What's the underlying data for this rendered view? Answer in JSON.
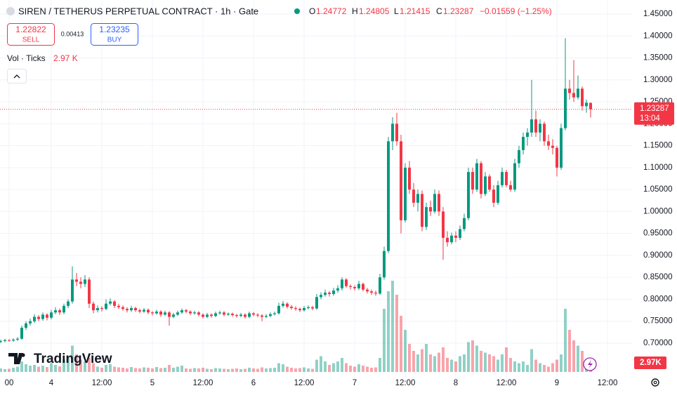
{
  "chart_data": {
    "type": "candlestick",
    "header": {
      "symbol": "SIREN / TETHERUS PERPETUAL CONTRACT · 1h · Gate",
      "o": "O",
      "h": "H",
      "l": "L",
      "c": "C",
      "change": "−0.01559 (−1.25%)"
    },
    "trade": {
      "sell_price": 1.22822,
      "sell": "SELL",
      "spread": 0.00413,
      "buy_price": 1.23235,
      "buy": "BUY"
    },
    "vol_legend": {
      "title": "Vol · Ticks",
      "value": "2.97 K"
    },
    "last_volume_label": "2.97K",
    "countdown": "13:04",
    "logo": "TradingView",
    "up_color": "#089981",
    "down_color": "#f23645",
    "grid": true,
    "ylim": [
      0.6184,
      1.482
    ],
    "yticks": [
      {
        "value": 1.45,
        "label": "1.45000"
      },
      {
        "value": 1.4,
        "label": "1.40000"
      },
      {
        "value": 1.35,
        "label": "1.35000"
      },
      {
        "value": 1.3,
        "label": "1.30000"
      },
      {
        "value": 1.25,
        "label": "1.25000"
      },
      {
        "value": 1.2,
        "label": "1.20000"
      },
      {
        "value": 1.15,
        "label": "1.15000"
      },
      {
        "value": 1.1,
        "label": "1.10000"
      },
      {
        "value": 1.05,
        "label": "1.05000"
      },
      {
        "value": 1.0,
        "label": "1.00000"
      },
      {
        "value": 0.95,
        "label": "0.95000"
      },
      {
        "value": 0.9,
        "label": "0.90000"
      },
      {
        "value": 0.85,
        "label": "0.85000"
      },
      {
        "value": 0.8,
        "label": "0.80000"
      },
      {
        "value": 0.75,
        "label": "0.75000"
      },
      {
        "value": 0.7,
        "label": "0.70000"
      }
    ],
    "xlim": [
      -0.167,
      149.833
    ],
    "xticks": [
      {
        "value": 2,
        "label": "00"
      },
      {
        "value": 12,
        "label": "4"
      },
      {
        "value": 24,
        "label": "12:00"
      },
      {
        "value": 36,
        "label": "5"
      },
      {
        "value": 48,
        "label": "12:00"
      },
      {
        "value": 60,
        "label": "6"
      },
      {
        "value": 72,
        "label": "12:00"
      },
      {
        "value": 84,
        "label": "7"
      },
      {
        "value": 96,
        "label": "12:00"
      },
      {
        "value": 108,
        "label": "8"
      },
      {
        "value": 120,
        "label": "12:00"
      },
      {
        "value": 132,
        "label": "9"
      },
      {
        "value": 144,
        "label": "12:00"
      }
    ],
    "volume_lim": [
      0,
      30
    ],
    "candles": [
      [
        0.703,
        0.708,
        0.7,
        0.705
      ],
      [
        0.705,
        0.71,
        0.702,
        0.707
      ],
      [
        0.707,
        0.709,
        0.703,
        0.706
      ],
      [
        0.706,
        0.711,
        0.703,
        0.708
      ],
      [
        0.708,
        0.714,
        0.705,
        0.71
      ],
      [
        0.71,
        0.74,
        0.708,
        0.735
      ],
      [
        0.735,
        0.75,
        0.73,
        0.745
      ],
      [
        0.745,
        0.756,
        0.74,
        0.75
      ],
      [
        0.75,
        0.766,
        0.746,
        0.76
      ],
      [
        0.76,
        0.764,
        0.75,
        0.755
      ],
      [
        0.755,
        0.77,
        0.751,
        0.765
      ],
      [
        0.765,
        0.768,
        0.752,
        0.758
      ],
      [
        0.758,
        0.776,
        0.754,
        0.77
      ],
      [
        0.77,
        0.782,
        0.766,
        0.775
      ],
      [
        0.775,
        0.779,
        0.764,
        0.77
      ],
      [
        0.77,
        0.79,
        0.766,
        0.785
      ],
      [
        0.785,
        0.8,
        0.78,
        0.795
      ],
      [
        0.795,
        0.875,
        0.79,
        0.845
      ],
      [
        0.845,
        0.86,
        0.83,
        0.84
      ],
      [
        0.84,
        0.85,
        0.825,
        0.835
      ],
      [
        0.835,
        0.855,
        0.828,
        0.845
      ],
      [
        0.845,
        0.85,
        0.78,
        0.79
      ],
      [
        0.79,
        0.795,
        0.768,
        0.775
      ],
      [
        0.775,
        0.786,
        0.77,
        0.78
      ],
      [
        0.78,
        0.784,
        0.772,
        0.778
      ],
      [
        0.778,
        0.8,
        0.775,
        0.79
      ],
      [
        0.79,
        0.802,
        0.786,
        0.795
      ],
      [
        0.795,
        0.798,
        0.78,
        0.785
      ],
      [
        0.785,
        0.79,
        0.778,
        0.782
      ],
      [
        0.782,
        0.786,
        0.774,
        0.778
      ],
      [
        0.778,
        0.782,
        0.77,
        0.775
      ],
      [
        0.775,
        0.785,
        0.771,
        0.78
      ],
      [
        0.78,
        0.783,
        0.771,
        0.775
      ],
      [
        0.775,
        0.779,
        0.768,
        0.772
      ],
      [
        0.772,
        0.78,
        0.769,
        0.776
      ],
      [
        0.776,
        0.779,
        0.766,
        0.77
      ],
      [
        0.77,
        0.773,
        0.763,
        0.768
      ],
      [
        0.768,
        0.776,
        0.765,
        0.772
      ],
      [
        0.772,
        0.775,
        0.76,
        0.765
      ],
      [
        0.765,
        0.774,
        0.762,
        0.77
      ],
      [
        0.77,
        0.773,
        0.74,
        0.76
      ],
      [
        0.76,
        0.769,
        0.757,
        0.765
      ],
      [
        0.765,
        0.774,
        0.762,
        0.77
      ],
      [
        0.77,
        0.779,
        0.767,
        0.775
      ],
      [
        0.775,
        0.778,
        0.768,
        0.772
      ],
      [
        0.772,
        0.775,
        0.764,
        0.768
      ],
      [
        0.768,
        0.774,
        0.765,
        0.77
      ],
      [
        0.77,
        0.773,
        0.761,
        0.765
      ],
      [
        0.765,
        0.768,
        0.756,
        0.76
      ],
      [
        0.76,
        0.769,
        0.757,
        0.765
      ],
      [
        0.765,
        0.768,
        0.758,
        0.762
      ],
      [
        0.762,
        0.772,
        0.759,
        0.768
      ],
      [
        0.768,
        0.774,
        0.765,
        0.77
      ],
      [
        0.77,
        0.773,
        0.761,
        0.765
      ],
      [
        0.765,
        0.77,
        0.762,
        0.767
      ],
      [
        0.767,
        0.77,
        0.76,
        0.764
      ],
      [
        0.764,
        0.767,
        0.758,
        0.762
      ],
      [
        0.762,
        0.769,
        0.759,
        0.765
      ],
      [
        0.765,
        0.768,
        0.756,
        0.76
      ],
      [
        0.76,
        0.772,
        0.757,
        0.768
      ],
      [
        0.768,
        0.771,
        0.761,
        0.765
      ],
      [
        0.765,
        0.768,
        0.759,
        0.763
      ],
      [
        0.763,
        0.766,
        0.75,
        0.76
      ],
      [
        0.76,
        0.766,
        0.757,
        0.762
      ],
      [
        0.762,
        0.77,
        0.759,
        0.766
      ],
      [
        0.766,
        0.772,
        0.763,
        0.768
      ],
      [
        0.768,
        0.792,
        0.765,
        0.785
      ],
      [
        0.785,
        0.796,
        0.781,
        0.79
      ],
      [
        0.79,
        0.793,
        0.779,
        0.783
      ],
      [
        0.783,
        0.787,
        0.776,
        0.78
      ],
      [
        0.78,
        0.784,
        0.774,
        0.778
      ],
      [
        0.778,
        0.781,
        0.771,
        0.775
      ],
      [
        0.775,
        0.785,
        0.772,
        0.78
      ],
      [
        0.78,
        0.786,
        0.777,
        0.782
      ],
      [
        0.782,
        0.785,
        0.775,
        0.779
      ],
      [
        0.779,
        0.812,
        0.776,
        0.805
      ],
      [
        0.805,
        0.816,
        0.8,
        0.81
      ],
      [
        0.81,
        0.822,
        0.806,
        0.815
      ],
      [
        0.815,
        0.819,
        0.806,
        0.812
      ],
      [
        0.812,
        0.826,
        0.808,
        0.82
      ],
      [
        0.82,
        0.832,
        0.815,
        0.825
      ],
      [
        0.825,
        0.85,
        0.82,
        0.845
      ],
      [
        0.845,
        0.848,
        0.826,
        0.83
      ],
      [
        0.83,
        0.834,
        0.822,
        0.828
      ],
      [
        0.828,
        0.832,
        0.82,
        0.825
      ],
      [
        0.825,
        0.842,
        0.821,
        0.835
      ],
      [
        0.835,
        0.838,
        0.818,
        0.822
      ],
      [
        0.822,
        0.826,
        0.813,
        0.818
      ],
      [
        0.818,
        0.822,
        0.81,
        0.815
      ],
      [
        0.815,
        0.82,
        0.808,
        0.813
      ],
      [
        0.813,
        0.858,
        0.81,
        0.85
      ],
      [
        0.85,
        0.92,
        0.845,
        0.91
      ],
      [
        0.91,
        1.17,
        0.905,
        1.16
      ],
      [
        1.16,
        1.215,
        1.14,
        1.2
      ],
      [
        1.2,
        1.225,
        1.15,
        1.16
      ],
      [
        1.16,
        1.175,
        0.95,
        0.98
      ],
      [
        0.98,
        1.11,
        0.975,
        1.1
      ],
      [
        1.1,
        1.115,
        1.04,
        1.05
      ],
      [
        1.05,
        1.065,
        1.01,
        1.02
      ],
      [
        1.02,
        1.05,
        1.0,
        1.04
      ],
      [
        1.04,
        1.048,
        0.955,
        0.965
      ],
      [
        0.965,
        1.02,
        0.958,
        1.01
      ],
      [
        1.01,
        1.025,
        0.99,
        1.0
      ],
      [
        1.0,
        1.05,
        0.995,
        1.04
      ],
      [
        1.04,
        1.048,
        0.99,
        1.0
      ],
      [
        1.0,
        1.01,
        0.89,
        0.94
      ],
      [
        0.94,
        0.955,
        0.92,
        0.93
      ],
      [
        0.93,
        0.952,
        0.925,
        0.945
      ],
      [
        0.945,
        0.955,
        0.93,
        0.94
      ],
      [
        0.94,
        0.968,
        0.935,
        0.96
      ],
      [
        0.96,
        0.995,
        0.955,
        0.985
      ],
      [
        0.985,
        1.1,
        0.98,
        1.09
      ],
      [
        1.09,
        1.1,
        1.04,
        1.05
      ],
      [
        1.05,
        1.12,
        1.045,
        1.11
      ],
      [
        1.11,
        1.115,
        1.03,
        1.04
      ],
      [
        1.04,
        1.09,
        1.035,
        1.08
      ],
      [
        1.08,
        1.085,
        1.045,
        1.05
      ],
      [
        1.05,
        1.06,
        1.01,
        1.02
      ],
      [
        1.02,
        1.07,
        1.015,
        1.06
      ],
      [
        1.06,
        1.1,
        1.055,
        1.09
      ],
      [
        1.09,
        1.095,
        1.055,
        1.06
      ],
      [
        1.06,
        1.07,
        1.045,
        1.05
      ],
      [
        1.05,
        1.12,
        1.045,
        1.11
      ],
      [
        1.11,
        1.15,
        1.1,
        1.14
      ],
      [
        1.14,
        1.18,
        1.13,
        1.17
      ],
      [
        1.17,
        1.19,
        1.15,
        1.18
      ],
      [
        1.18,
        1.3,
        1.17,
        1.21
      ],
      [
        1.21,
        1.23,
        1.17,
        1.18
      ],
      [
        1.18,
        1.21,
        1.16,
        1.2
      ],
      [
        1.2,
        1.205,
        1.15,
        1.16
      ],
      [
        1.16,
        1.175,
        1.14,
        1.15
      ],
      [
        1.15,
        1.165,
        1.13,
        1.145
      ],
      [
        1.145,
        1.15,
        1.08,
        1.1
      ],
      [
        1.1,
        1.2,
        1.095,
        1.19
      ],
      [
        1.19,
        1.395,
        1.185,
        1.28
      ],
      [
        1.28,
        1.3,
        1.255,
        1.27
      ],
      [
        1.27,
        1.345,
        1.25,
        1.26
      ],
      [
        1.26,
        1.31,
        1.255,
        1.28
      ],
      [
        1.28,
        1.285,
        1.23,
        1.24
      ],
      [
        1.24,
        1.255,
        1.225,
        1.248
      ],
      [
        1.24772,
        1.24805,
        1.21415,
        1.23287
      ]
    ],
    "volume": [
      1.0,
      0.8,
      0.9,
      1.2,
      1.5,
      3.0,
      2.2,
      1.8,
      2.0,
      1.5,
      1.8,
      1.4,
      2.5,
      2.0,
      1.6,
      3.5,
      4.5,
      7.5,
      5.0,
      3.5,
      3.0,
      4.0,
      2.5,
      1.5,
      1.2,
      2.0,
      2.2,
      1.5,
      1.3,
      1.2,
      1.0,
      1.4,
      1.1,
      1.0,
      1.3,
      1.2,
      1.0,
      1.4,
      1.1,
      1.2,
      2.0,
      1.2,
      1.5,
      1.8,
      1.0,
      0.9,
      1.1,
      1.0,
      1.2,
      0.9,
      0.8,
      1.1,
      1.0,
      0.9,
      0.8,
      0.9,
      1.0,
      0.8,
      0.9,
      1.2,
      1.0,
      0.9,
      1.3,
      1.0,
      1.1,
      1.2,
      2.5,
      2.2,
      1.5,
      1.2,
      1.0,
      1.1,
      1.3,
      1.0,
      0.9,
      3.5,
      4.5,
      3.0,
      2.0,
      2.5,
      3.0,
      4.0,
      2.5,
      1.8,
      1.5,
      2.2,
      1.8,
      1.5,
      1.2,
      1.3,
      4.0,
      18.0,
      23.0,
      26.0,
      22.0,
      16.0,
      12.0,
      8.0,
      6.0,
      5.0,
      6.5,
      8.0,
      5.0,
      4.5,
      5.5,
      7.0,
      4.0,
      3.5,
      3.0,
      4.5,
      5.0,
      8.5,
      9.0,
      7.5,
      6.0,
      5.5,
      5.0,
      4.5,
      3.5,
      5.0,
      7.0,
      4.0,
      3.0,
      2.5,
      3.0,
      2.0,
      6.5,
      3.5,
      2.5,
      2.0,
      1.5,
      2.5,
      3.5,
      5.0,
      18.0,
      12.0,
      9.0,
      7.5,
      6.0,
      3.5,
      2.97
    ]
  }
}
